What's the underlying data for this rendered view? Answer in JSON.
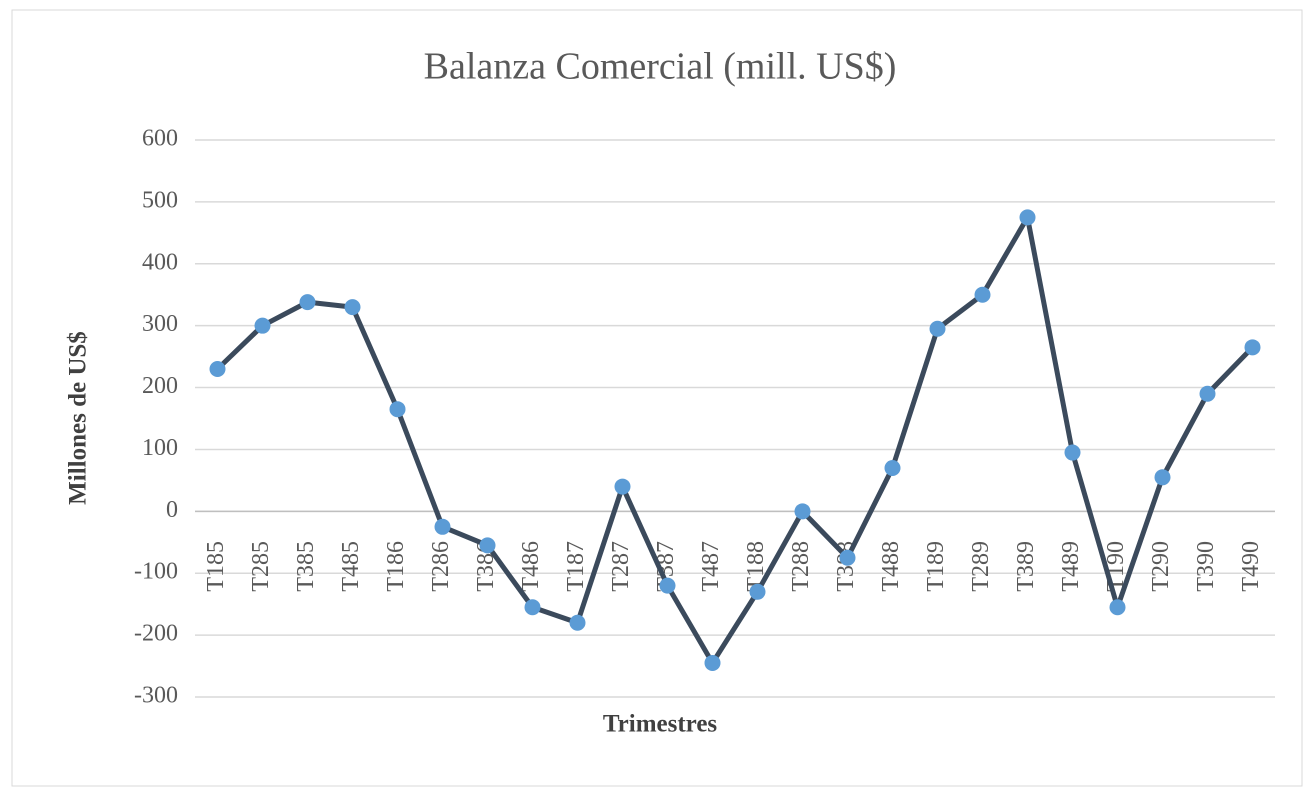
{
  "chart_data": {
    "type": "line",
    "title": "Balanza Comercial (mill. US$)",
    "x_label": "Trimestres",
    "y_label": "Millones de US$",
    "categories": [
      "T185",
      "T285",
      "T385",
      "T485",
      "T186",
      "T286",
      "T386",
      "T486",
      "T187",
      "T287",
      "T387",
      "T487",
      "T188",
      "T288",
      "T388",
      "T488",
      "T189",
      "T289",
      "T389",
      "T489",
      "T190",
      "T290",
      "T390",
      "T490"
    ],
    "series": [
      {
        "name": "Balanza Comercial",
        "color": "#3b4a5c",
        "marker_color": "#5b9bd5",
        "values": [
          230,
          300,
          338,
          330,
          165,
          -25,
          -55,
          -155,
          -180,
          40,
          -120,
          -245,
          -130,
          0,
          -75,
          70,
          295,
          350,
          475,
          95,
          -155,
          55,
          190,
          265
        ]
      }
    ],
    "ylim": [
      -300,
      600
    ],
    "yticks": [
      -300,
      -200,
      -100,
      0,
      100,
      200,
      300,
      400,
      500,
      600
    ],
    "grid": true
  }
}
